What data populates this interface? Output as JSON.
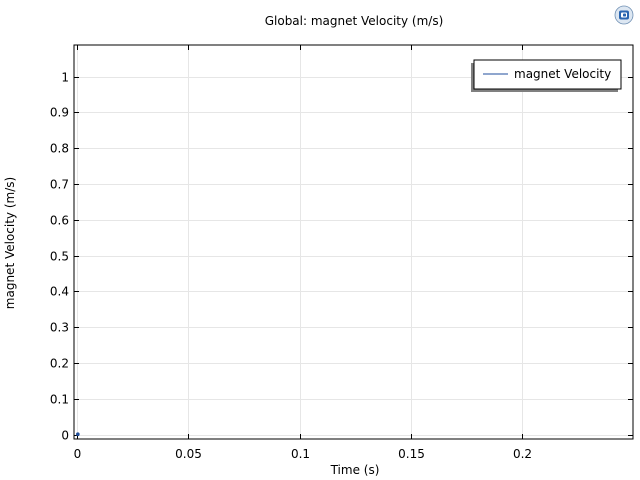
{
  "chart_data": {
    "type": "line",
    "title": "Global: magnet Velocity (m/s)",
    "xlabel": "Time (s)",
    "ylabel": "magnet Velocity (m/s)",
    "xlim": [
      -0.0015,
      0.25
    ],
    "ylim": [
      -0.012,
      1.088
    ],
    "x_ticks": [
      0,
      0.05,
      0.1,
      0.15,
      0.2
    ],
    "x_tick_labels": [
      "0",
      "0.05",
      "0.1",
      "0.15",
      "0.2"
    ],
    "y_ticks": [
      0,
      0.1,
      0.2,
      0.3,
      0.4,
      0.5,
      0.6,
      0.7,
      0.8,
      0.9,
      1
    ],
    "y_tick_labels": [
      "0",
      "0.1",
      "0.2",
      "0.3",
      "0.4",
      "0.5",
      "0.6",
      "0.7",
      "0.8",
      "0.9",
      "1"
    ],
    "grid": true,
    "legend_position": "top-right",
    "series": [
      {
        "name": "magnet Velocity",
        "color": "#1f4e9c",
        "x": [
          0
        ],
        "y": [
          0
        ]
      }
    ]
  },
  "icons": {
    "logo": "app-logo-icon"
  }
}
